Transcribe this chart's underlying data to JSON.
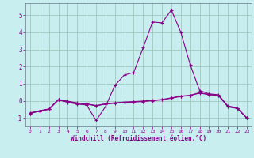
{
  "xlabel": "Windchill (Refroidissement éolien,°C)",
  "background_color": "#c8eef0",
  "grid_color": "#a0c8c0",
  "line_color": "#880088",
  "x": [
    0,
    1,
    2,
    3,
    4,
    5,
    6,
    7,
    8,
    9,
    10,
    11,
    12,
    13,
    14,
    15,
    16,
    17,
    18,
    19,
    20,
    21,
    22,
    23
  ],
  "series": [
    [
      -0.7,
      -0.6,
      -0.5,
      0.05,
      -0.1,
      -0.2,
      -0.25,
      -1.15,
      -0.35,
      0.9,
      1.5,
      1.65,
      3.1,
      4.6,
      4.55,
      5.3,
      4.0,
      2.1,
      0.6,
      0.4,
      0.35,
      -0.35,
      -0.45,
      -1.0
    ],
    [
      -0.75,
      -0.6,
      -0.5,
      0.05,
      -0.05,
      -0.15,
      -0.2,
      -0.3,
      -0.2,
      -0.15,
      -0.1,
      -0.08,
      -0.05,
      0.0,
      0.05,
      0.15,
      0.25,
      0.3,
      0.45,
      0.35,
      0.3,
      -0.35,
      -0.45,
      -1.0
    ],
    [
      -0.75,
      -0.58,
      -0.48,
      0.07,
      -0.03,
      -0.13,
      -0.18,
      -0.28,
      -0.18,
      -0.12,
      -0.08,
      -0.05,
      -0.02,
      0.02,
      0.07,
      0.17,
      0.27,
      0.32,
      0.47,
      0.37,
      0.32,
      -0.3,
      -0.42,
      -1.0
    ]
  ],
  "ylim": [
    -1.5,
    5.7
  ],
  "yticks": [
    -1,
    0,
    1,
    2,
    3,
    4,
    5
  ],
  "xticks": [
    0,
    1,
    2,
    3,
    4,
    5,
    6,
    7,
    8,
    9,
    10,
    11,
    12,
    13,
    14,
    15,
    16,
    17,
    18,
    19,
    20,
    21,
    22,
    23
  ]
}
